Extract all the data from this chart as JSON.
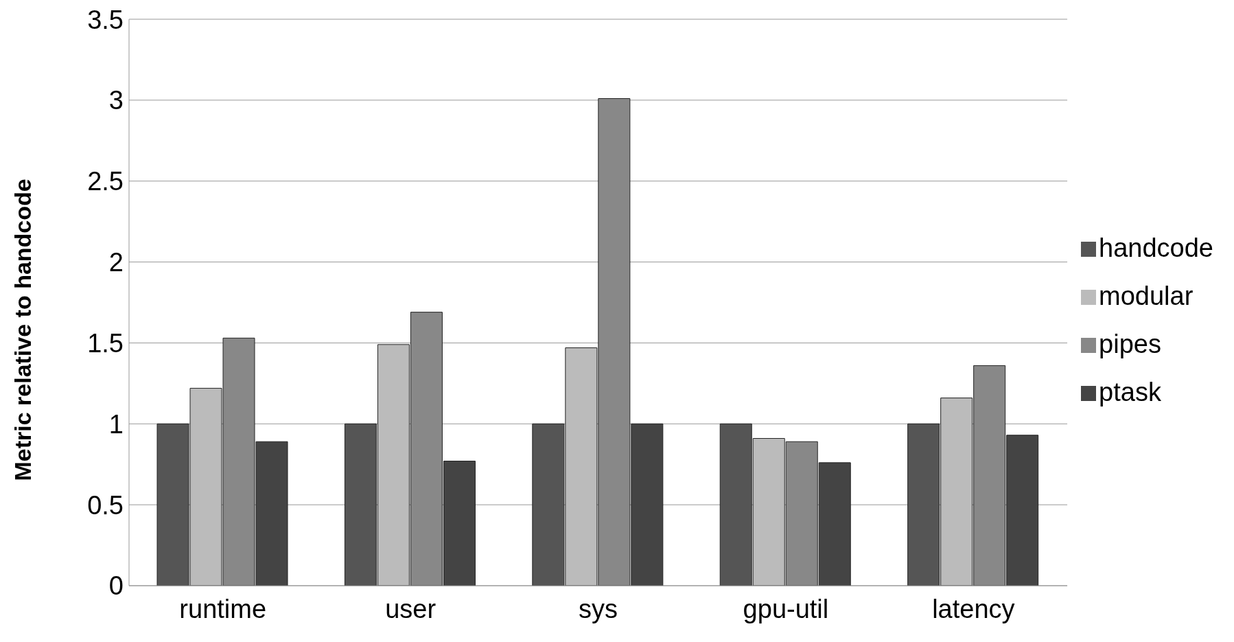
{
  "chart_data": {
    "type": "bar",
    "ylabel": "Metric relative to handcode",
    "categories": [
      "runtime",
      "user",
      "sys",
      "gpu-util",
      "latency"
    ],
    "series": [
      {
        "name": "handcode",
        "color": "#555555",
        "values": [
          1,
          1,
          1,
          1,
          1
        ]
      },
      {
        "name": "modular",
        "color": "#bbbbbb",
        "values": [
          1.22,
          1.49,
          1.47,
          0.91,
          1.16
        ]
      },
      {
        "name": "pipes",
        "color": "#888888",
        "values": [
          1.53,
          1.69,
          3.01,
          0.89,
          1.36
        ]
      },
      {
        "name": "ptask",
        "color": "#444444",
        "values": [
          0.89,
          0.77,
          1.0,
          0.76,
          0.93
        ]
      }
    ],
    "ylim": [
      0,
      3.5
    ],
    "yticks": [
      0,
      0.5,
      1,
      1.5,
      2,
      2.5,
      3,
      3.5
    ],
    "grid": "y",
    "legend": "right"
  }
}
